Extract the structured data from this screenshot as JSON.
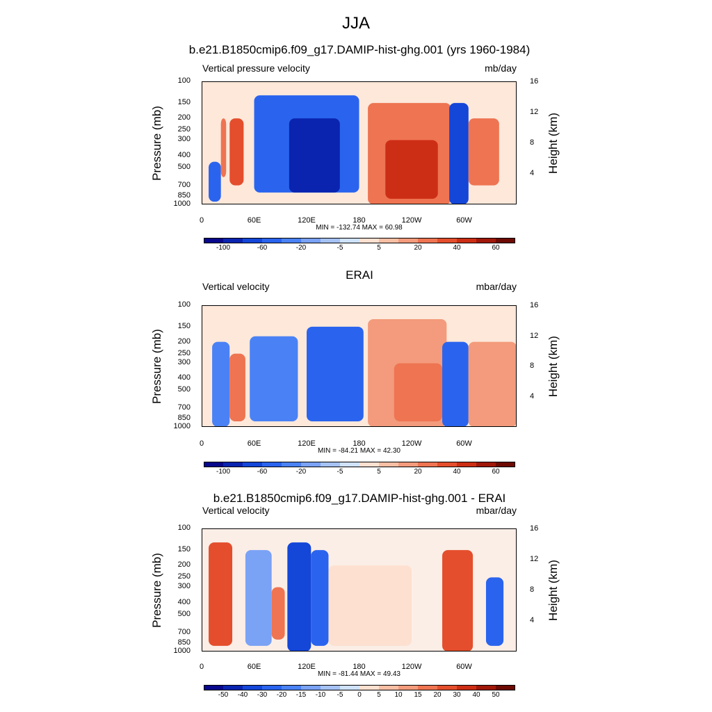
{
  "figure": {
    "title": "JJA"
  },
  "panels": [
    {
      "title": "b.e21.B1850cmip6.f09_g17.DAMIP-hist-ghg.001 (yrs 1960-1984)",
      "left_label": "Vertical pressure velocity",
      "right_label": "mb/day",
      "minmax": "MIN = -132.74  MAX =  60.98",
      "y_label": "Pressure (mb)",
      "y2_label": "Height (km)",
      "y_ticks": [
        "100",
        "150",
        "200",
        "250",
        "300",
        "400",
        "500",
        "700",
        "850",
        "1000"
      ],
      "y2_ticks": [
        "16",
        "12",
        "8",
        "4"
      ],
      "x_ticks": [
        "0",
        "60E",
        "120E",
        "180",
        "120W",
        "60W"
      ],
      "colorbar_labels": [
        "-100",
        "-60",
        "-20",
        "-5",
        "5",
        "20",
        "40",
        "60"
      ]
    },
    {
      "title": "ERAI",
      "left_label": "Vertical velocity",
      "right_label": "mbar/day",
      "minmax": "MIN = -84.21  MAX =  42.30",
      "y_label": "Pressure (mb)",
      "y2_label": "Height (km)",
      "y_ticks": [
        "100",
        "150",
        "200",
        "250",
        "300",
        "400",
        "500",
        "700",
        "850",
        "1000"
      ],
      "y2_ticks": [
        "16",
        "12",
        "8",
        "4"
      ],
      "x_ticks": [
        "0",
        "60E",
        "120E",
        "180",
        "120W",
        "60W"
      ],
      "colorbar_labels": [
        "-100",
        "-60",
        "-20",
        "-5",
        "5",
        "20",
        "40",
        "60"
      ]
    },
    {
      "title": "b.e21.B1850cmip6.f09_g17.DAMIP-hist-ghg.001 - ERAI",
      "left_label": "Vertical velocity",
      "right_label": "mbar/day",
      "minmax": "MIN = -81.44  MAX =  49.43",
      "y_label": "Pressure (mb)",
      "y2_label": "Height (km)",
      "y_ticks": [
        "100",
        "150",
        "200",
        "250",
        "300",
        "400",
        "500",
        "700",
        "850",
        "1000"
      ],
      "y2_ticks": [
        "16",
        "12",
        "8",
        "4"
      ],
      "x_ticks": [
        "0",
        "60E",
        "120E",
        "180",
        "120W",
        "60W"
      ],
      "colorbar_labels": [
        "-50",
        "-40",
        "-30",
        "-20",
        "-15",
        "-10",
        "-5",
        "0",
        "5",
        "10",
        "15",
        "20",
        "30",
        "40",
        "50"
      ]
    }
  ],
  "colors": {
    "palette": [
      "#08088c",
      "#0a24b0",
      "#1446d8",
      "#2a64ee",
      "#4a82f5",
      "#7aa2f5",
      "#a6c2f5",
      "#cfe2fb",
      "#fde0cf",
      "#f8bfa5",
      "#f39b7c",
      "#ee7452",
      "#e44e2c",
      "#cc2e15",
      "#a0180a",
      "#6e0a04"
    ],
    "missing": "#000000"
  },
  "chart_data": [
    {
      "type": "heatmap",
      "title": "b.e21.B1850cmip6.f09_g17.DAMIP-hist-ghg.001 (yrs 1960-1984)",
      "field": "Vertical pressure velocity",
      "units": "mb/day",
      "x_ticks": [
        "0",
        "60E",
        "120E",
        "180",
        "120W",
        "60W"
      ],
      "y_ticks_pressure_mb": [
        100,
        150,
        200,
        250,
        300,
        400,
        500,
        700,
        850,
        1000
      ],
      "y2_ticks_height_km": [
        16,
        12,
        8,
        4
      ],
      "min": -132.74,
      "max": 60.98,
      "levels": [
        -100,
        -80,
        -60,
        -40,
        -20,
        -10,
        -5,
        -1,
        1,
        5,
        10,
        20,
        30,
        40,
        60
      ],
      "colorbar_labels": [
        "-100",
        "-60",
        "-20",
        "-5",
        "5",
        "20",
        "40",
        "60"
      ],
      "features": [
        {
          "lon_range": [
            8,
            22
          ],
          "p_range": [
            450,
            950
          ],
          "value": -40
        },
        {
          "lon_range": [
            22,
            28
          ],
          "p_range": [
            200,
            600
          ],
          "value": 20
        },
        {
          "lon_range": [
            32,
            48
          ],
          "p_range": [
            200,
            700
          ],
          "value": 30
        },
        {
          "lon_range": [
            60,
            180
          ],
          "p_range": [
            130,
            800
          ],
          "value": -40
        },
        {
          "lon_range": [
            100,
            158
          ],
          "p_range": [
            200,
            800
          ],
          "value": -80
        },
        {
          "lon_range": [
            190,
            285
          ],
          "p_range": [
            150,
            1000
          ],
          "value": 20
        },
        {
          "lon_range": [
            210,
            270
          ],
          "p_range": [
            300,
            900
          ],
          "value": 40
        },
        {
          "lon_range": [
            283,
            305
          ],
          "p_range": [
            150,
            1000
          ],
          "value": -60
        },
        {
          "lon_range": [
            305,
            340
          ],
          "p_range": [
            200,
            700
          ],
          "value": 20
        }
      ]
    },
    {
      "type": "heatmap",
      "title": "ERAI",
      "field": "Vertical velocity",
      "units": "mbar/day",
      "x_ticks": [
        "0",
        "60E",
        "120E",
        "180",
        "120W",
        "60W"
      ],
      "y_ticks_pressure_mb": [
        100,
        150,
        200,
        250,
        300,
        400,
        500,
        700,
        850,
        1000
      ],
      "y2_ticks_height_km": [
        16,
        12,
        8,
        4
      ],
      "min": -84.21,
      "max": 42.3,
      "levels": [
        -100,
        -80,
        -60,
        -40,
        -20,
        -10,
        -5,
        -1,
        1,
        5,
        10,
        20,
        30,
        40,
        60
      ],
      "colorbar_labels": [
        "-100",
        "-60",
        "-20",
        "-5",
        "5",
        "20",
        "40",
        "60"
      ],
      "features": [
        {
          "lon_range": [
            12,
            32
          ],
          "p_range": [
            200,
            1000
          ],
          "value": -30
        },
        {
          "lon_range": [
            32,
            50
          ],
          "p_range": [
            250,
            900
          ],
          "value": 20
        },
        {
          "lon_range": [
            55,
            110
          ],
          "p_range": [
            180,
            900
          ],
          "value": -30
        },
        {
          "lon_range": [
            120,
            185
          ],
          "p_range": [
            150,
            900
          ],
          "value": -40
        },
        {
          "lon_range": [
            190,
            280
          ],
          "p_range": [
            130,
            1000
          ],
          "value": 10
        },
        {
          "lon_range": [
            220,
            275
          ],
          "p_range": [
            300,
            900
          ],
          "value": 20
        },
        {
          "lon_range": [
            275,
            305
          ],
          "p_range": [
            200,
            1000
          ],
          "value": -40
        },
        {
          "lon_range": [
            305,
            360
          ],
          "p_range": [
            200,
            1000
          ],
          "value": 10
        }
      ]
    },
    {
      "type": "heatmap",
      "title": "b.e21.B1850cmip6.f09_g17.DAMIP-hist-ghg.001 - ERAI",
      "field": "Vertical velocity",
      "units": "mbar/day",
      "x_ticks": [
        "0",
        "60E",
        "120E",
        "180",
        "120W",
        "60W"
      ],
      "y_ticks_pressure_mb": [
        100,
        150,
        200,
        250,
        300,
        400,
        500,
        700,
        850,
        1000
      ],
      "y2_ticks_height_km": [
        16,
        12,
        8,
        4
      ],
      "min": -81.44,
      "max": 49.43,
      "levels": [
        -50,
        -40,
        -30,
        -20,
        -15,
        -10,
        -5,
        0,
        5,
        10,
        15,
        20,
        30,
        40,
        50
      ],
      "colorbar_labels": [
        "-50",
        "-40",
        "-30",
        "-20",
        "-15",
        "-10",
        "-5",
        "0",
        "5",
        "10",
        "15",
        "20",
        "30",
        "40",
        "50"
      ],
      "features": [
        {
          "lon_range": [
            8,
            35
          ],
          "p_range": [
            130,
            900
          ],
          "value": 30
        },
        {
          "lon_range": [
            50,
            80
          ],
          "p_range": [
            150,
            900
          ],
          "value": -10
        },
        {
          "lon_range": [
            80,
            95
          ],
          "p_range": [
            300,
            800
          ],
          "value": 20
        },
        {
          "lon_range": [
            98,
            125
          ],
          "p_range": [
            130,
            1000
          ],
          "value": -30
        },
        {
          "lon_range": [
            125,
            145
          ],
          "p_range": [
            150,
            900
          ],
          "value": -20
        },
        {
          "lon_range": [
            145,
            240
          ],
          "p_range": [
            200,
            900
          ],
          "value": 5
        },
        {
          "lon_range": [
            275,
            310
          ],
          "p_range": [
            150,
            1000
          ],
          "value": 30
        },
        {
          "lon_range": [
            325,
            345
          ],
          "p_range": [
            250,
            900
          ],
          "value": -20
        }
      ]
    }
  ]
}
